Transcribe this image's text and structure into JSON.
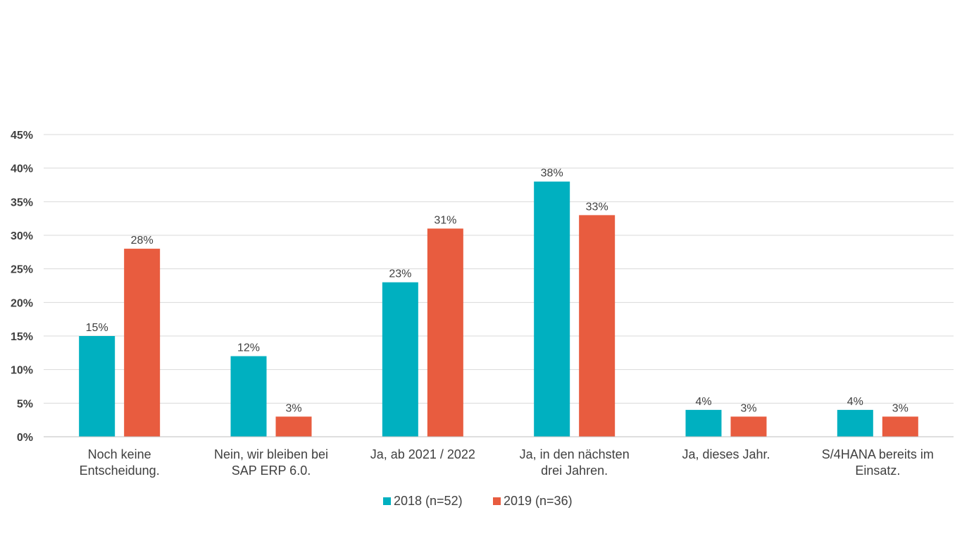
{
  "colors": {
    "s2018": "#00b0c0",
    "s2019": "#e85c3f"
  },
  "chart_data": {
    "type": "bar",
    "title": "",
    "xlabel": "",
    "ylabel": "",
    "ylim": [
      0,
      45
    ],
    "grid": true,
    "legend_position": "bottom",
    "y_ticks": [
      "0%",
      "5%",
      "10%",
      "15%",
      "20%",
      "25%",
      "30%",
      "35%",
      "40%",
      "45%"
    ],
    "categories": [
      [
        "Noch keine",
        "Entscheidung."
      ],
      [
        "Nein, wir bleiben bei",
        "SAP ERP 6.0."
      ],
      [
        "Ja, ab 2021 / 2022"
      ],
      [
        "Ja, in den nächsten",
        "drei Jahren."
      ],
      [
        "Ja, dieses Jahr."
      ],
      [
        "S/4HANA bereits im",
        "Einsatz."
      ]
    ],
    "series": [
      {
        "name": "2018 (n=52)",
        "values": [
          15,
          12,
          23,
          38,
          4,
          4
        ],
        "labels": [
          "15%",
          "12%",
          "23%",
          "38%",
          "4%",
          "4%"
        ]
      },
      {
        "name": "2019 (n=36)",
        "values": [
          28,
          3,
          31,
          33,
          3,
          3
        ],
        "labels": [
          "28%",
          "3%",
          "31%",
          "33%",
          "3%",
          "3%"
        ]
      }
    ]
  }
}
